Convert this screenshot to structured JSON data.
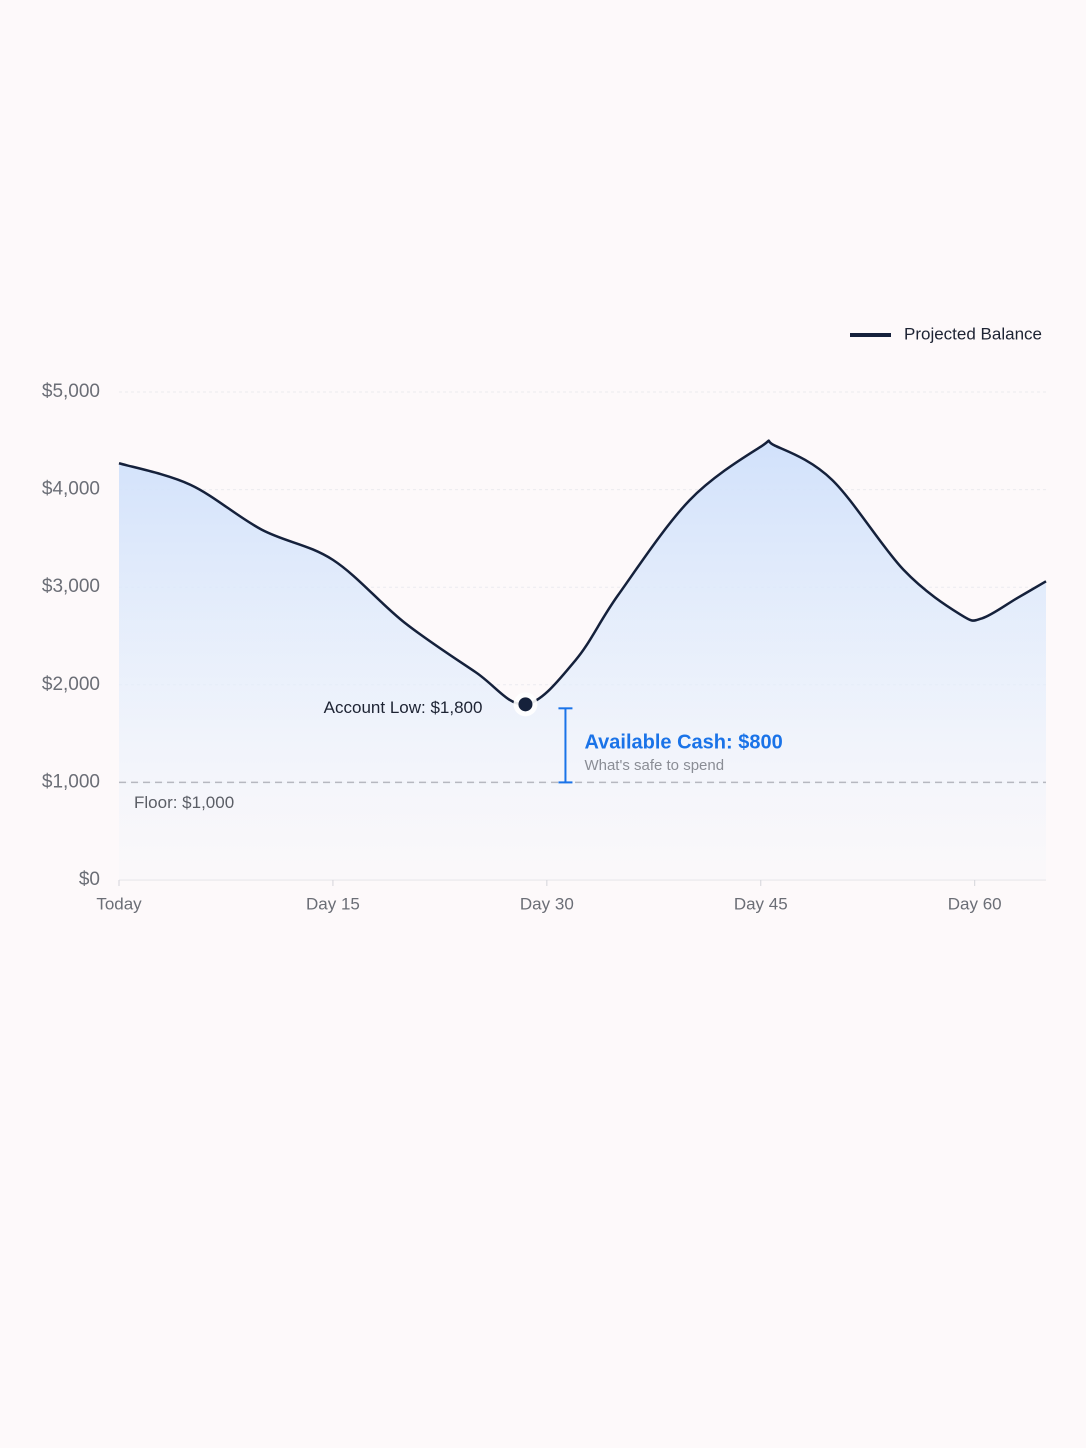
{
  "chart_data": {
    "type": "line",
    "x": [
      0,
      5,
      10,
      15,
      20,
      25,
      28.5,
      32,
      35,
      40,
      45,
      46,
      50,
      55,
      59,
      60.5,
      63,
      65
    ],
    "series": [
      {
        "name": "Projected Balance",
        "color": "#15213b",
        "values": [
          4270,
          4050,
          3590,
          3280,
          2640,
          2130,
          1800,
          2250,
          2920,
          3890,
          4440,
          4450,
          4100,
          3180,
          2720,
          2680,
          2890,
          3060
        ]
      }
    ],
    "xlim": [
      0,
      65
    ],
    "xticks": [
      {
        "value": 0,
        "label": "Today"
      },
      {
        "value": 15,
        "label": "Day 15"
      },
      {
        "value": 30,
        "label": "Day 30"
      },
      {
        "value": 45,
        "label": "Day 45"
      },
      {
        "value": 60,
        "label": "Day 60"
      }
    ],
    "ylim": [
      0,
      5000
    ],
    "yticks": [
      {
        "value": 0,
        "label": "$0"
      },
      {
        "value": 1000,
        "label": "$1,000"
      },
      {
        "value": 2000,
        "label": "$2,000"
      },
      {
        "value": 3000,
        "label": "$3,000"
      },
      {
        "value": 4000,
        "label": "$4,000"
      },
      {
        "value": 5000,
        "label": "$5,000"
      }
    ],
    "grid": true,
    "legend": "top-right",
    "low": {
      "x": 28.5,
      "value": 1800,
      "label": "Account Low: $1,800"
    },
    "floor": {
      "value": 1000,
      "label": "Floor: $1,000"
    },
    "available": {
      "label": "Available Cash: $800",
      "sublabel": "What's safe to spend",
      "color": "#1a73e8"
    }
  }
}
